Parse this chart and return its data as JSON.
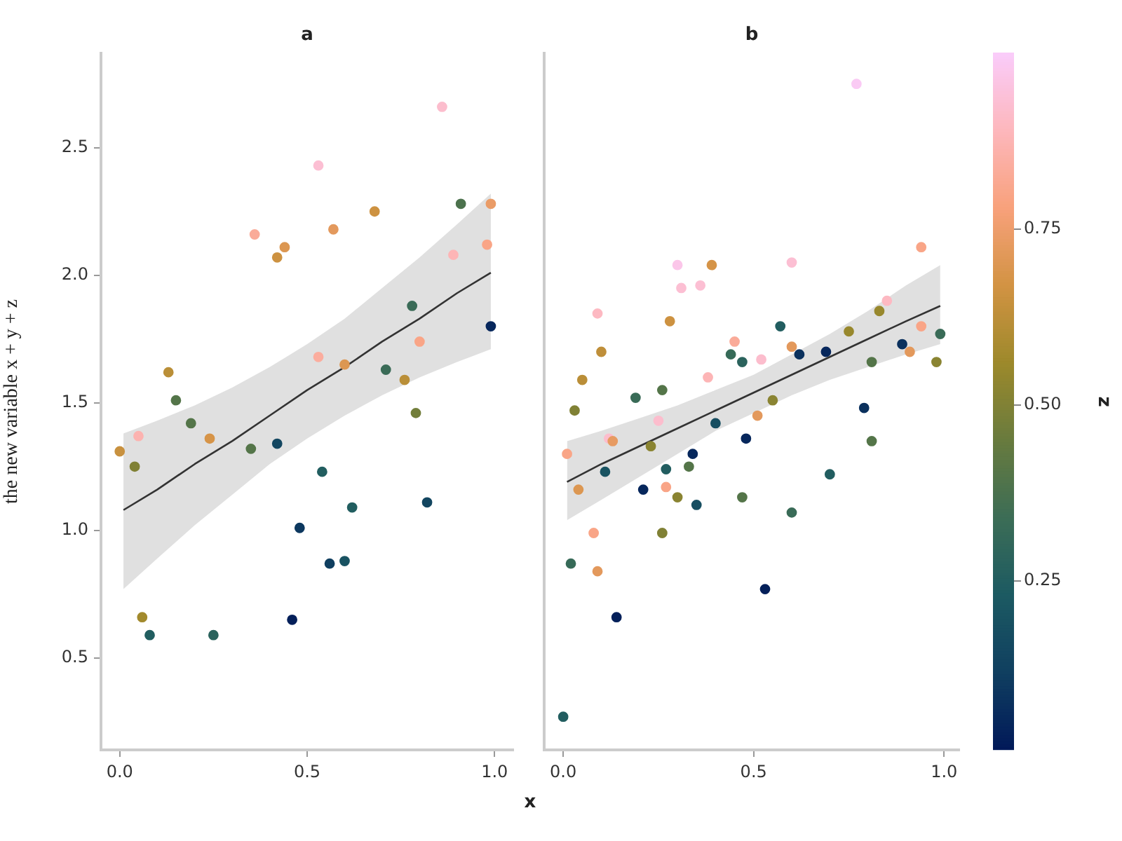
{
  "chart_data": [
    {
      "type": "scatter",
      "title": "a",
      "xlabel": "x",
      "ylabel": "the new variable x + y + z",
      "xlim": [
        -0.05,
        1.05
      ],
      "xticks": [
        {
          "value": 0,
          "label": "0.0"
        },
        {
          "value": 0.5,
          "label": "0.5"
        },
        {
          "value": 1,
          "label": "1.0"
        }
      ],
      "ylim": [
        0.14,
        2.87
      ],
      "yticks": [
        {
          "value": 0.5,
          "label": "0.5"
        },
        {
          "value": 1,
          "label": "1.0"
        },
        {
          "value": 1.5,
          "label": "1.5"
        },
        {
          "value": 2,
          "label": "2.0"
        },
        {
          "value": 2.5,
          "label": "2.5"
        }
      ],
      "marker": "circle",
      "series": [
        {
          "type": "scatter",
          "x": [
            0.0,
            0.05,
            0.04,
            0.13,
            0.15,
            0.19,
            0.24,
            0.06,
            0.08,
            0.25,
            0.35,
            0.42,
            0.36,
            0.42,
            0.44,
            0.53,
            0.57,
            0.68,
            0.53,
            0.6,
            0.71,
            0.76,
            0.78,
            0.79,
            0.8,
            0.86,
            0.91,
            0.89,
            0.98,
            0.99,
            0.99,
            0.54,
            0.62,
            0.48,
            0.56,
            0.6,
            0.82,
            0.46
          ],
          "values": [
            1.31,
            1.37,
            1.25,
            1.62,
            1.51,
            1.42,
            1.36,
            0.66,
            0.59,
            0.59,
            1.32,
            1.34,
            2.16,
            2.07,
            2.11,
            2.43,
            2.18,
            2.25,
            1.68,
            1.65,
            1.63,
            1.59,
            1.88,
            1.46,
            1.74,
            2.66,
            2.28,
            2.08,
            2.12,
            2.28,
            1.8,
            1.23,
            1.09,
            1.01,
            0.87,
            0.88,
            1.11,
            0.65
          ],
          "colors": [
            "#c8913f",
            "#fcb3b0",
            "#808135",
            "#ba8f38",
            "#547549",
            "#547549",
            "#d69448",
            "#a28a2d",
            "#225e60",
            "#2b635d",
            "#547549",
            "#134660",
            "#faab99",
            "#cd9241",
            "#dc9752",
            "#fcbfd3",
            "#e3995d",
            "#cd9241",
            "#fbad9e",
            "#dc9752",
            "#3a6b57",
            "#ba8f38",
            "#3a6b57",
            "#727e3b",
            "#f9a587",
            "#fcbdcd",
            "#4c724d",
            "#fdb5b6",
            "#f9a587",
            "#ea9c67",
            "#07275c",
            "#225e60",
            "#225e60",
            "#0d385f",
            "#103f60",
            "#195362",
            "#134660",
            "#04205a"
          ]
        },
        {
          "type": "line",
          "marker": "none",
          "color": "#333333",
          "x": [
            0.01,
            0.1,
            0.2,
            0.3,
            0.4,
            0.5,
            0.6,
            0.7,
            0.8,
            0.9,
            0.99
          ],
          "values": [
            1.08,
            1.16,
            1.26,
            1.35,
            1.45,
            1.55,
            1.64,
            1.74,
            1.83,
            1.93,
            2.01
          ],
          "lower": [
            0.77,
            0.89,
            1.02,
            1.14,
            1.26,
            1.36,
            1.45,
            1.53,
            1.6,
            1.66,
            1.71
          ],
          "upper": [
            1.38,
            1.43,
            1.49,
            1.56,
            1.64,
            1.73,
            1.83,
            1.95,
            2.07,
            2.2,
            2.32
          ]
        }
      ]
    },
    {
      "type": "scatter",
      "title": "b",
      "xlim": [
        -0.05,
        1.04
      ],
      "xticks": [
        {
          "value": 0,
          "label": "0.0"
        },
        {
          "value": 0.5,
          "label": "0.5"
        },
        {
          "value": 1,
          "label": "1.0"
        }
      ],
      "ylim": [
        0.14,
        2.87
      ],
      "tick_labels": "x",
      "clim": [
        0.01,
        1.0
      ],
      "clabel": "z",
      "cticks": [
        0.25,
        {
          "value": 0.5,
          "label": "0.50"
        },
        0.75
      ],
      "marker": "circle",
      "series": [
        {
          "type": "scatter",
          "x": [
            0.01,
            0.03,
            0.05,
            0.1,
            0.04,
            0.02,
            0.08,
            0.09,
            0.14,
            0.0,
            0.11,
            0.12,
            0.13,
            0.19,
            0.26,
            0.23,
            0.25,
            0.21,
            0.27,
            0.27,
            0.3,
            0.34,
            0.33,
            0.35,
            0.26,
            0.38,
            0.4,
            0.48,
            0.47,
            0.51,
            0.55,
            0.6,
            0.53,
            0.7,
            0.79,
            0.81,
            0.77,
            0.3,
            0.39,
            0.31,
            0.36,
            0.6,
            0.09,
            0.28,
            0.57,
            0.45,
            0.44,
            0.47,
            0.52,
            0.6,
            0.62,
            0.69,
            0.75,
            0.83,
            0.85,
            0.94,
            0.94,
            0.89,
            0.91,
            0.81,
            0.99,
            0.98
          ],
          "values": [
            1.3,
            1.47,
            1.59,
            1.7,
            1.16,
            0.87,
            0.99,
            0.84,
            0.66,
            0.27,
            1.23,
            1.36,
            1.35,
            1.52,
            1.55,
            1.33,
            1.43,
            1.16,
            1.24,
            1.17,
            1.13,
            1.3,
            1.25,
            1.1,
            0.99,
            1.6,
            1.42,
            1.36,
            1.13,
            1.45,
            1.51,
            1.07,
            0.77,
            1.22,
            1.48,
            1.35,
            2.75,
            2.04,
            2.04,
            1.95,
            1.96,
            2.05,
            1.85,
            1.82,
            1.8,
            1.74,
            1.69,
            1.66,
            1.67,
            1.72,
            1.69,
            1.7,
            1.78,
            1.86,
            1.9,
            2.11,
            1.8,
            1.73,
            1.7,
            1.66,
            1.77,
            1.66
          ],
          "colors": [
            "#f9a587",
            "#808135",
            "#ba8f38",
            "#bf8f3a",
            "#dc9752",
            "#386b58",
            "#f9a587",
            "#e3995d",
            "#04205a",
            "#225e60",
            "#195362",
            "#fcbdcd",
            "#e79b62",
            "#3a6b57",
            "#547549",
            "#8a8432",
            "#fcbdcd",
            "#07275c",
            "#225e60",
            "#f9a587",
            "#8a8432",
            "#07275c",
            "#547549",
            "#174e61",
            "#808135",
            "#fdb5b6",
            "#174e61",
            "#07275c",
            "#547549",
            "#e3995d",
            "#8a8432",
            "#3a6b57",
            "#04205a",
            "#225e60",
            "#0b315e",
            "#547549",
            "#facaf4",
            "#fbc6e9",
            "#d69448",
            "#fcbfd3",
            "#fcbfd3",
            "#fcbfd3",
            "#fdb9c2",
            "#cd9241",
            "#225e60",
            "#faab99",
            "#386b58",
            "#2b635d",
            "#fcbdcd",
            "#e3995d",
            "#0b315e",
            "#07275c",
            "#98882d",
            "#98882d",
            "#fdb9c2",
            "#f9a587",
            "#f9a587",
            "#0b315e",
            "#e3995d",
            "#547549",
            "#3a6b57",
            "#8a8432"
          ],
          "cvalues": [
            0.8,
            0.5,
            0.62,
            0.63,
            0.7,
            0.32,
            0.8,
            0.72,
            0.03,
            0.25,
            0.2,
            0.92,
            0.73,
            0.33,
            0.4,
            0.52,
            0.92,
            0.05,
            0.25,
            0.8,
            0.52,
            0.05,
            0.4,
            0.18,
            0.5,
            0.88,
            0.18,
            0.05,
            0.4,
            0.72,
            0.52,
            0.33,
            0.03,
            0.25,
            0.08,
            0.4,
            0.99,
            0.97,
            0.68,
            0.93,
            0.93,
            0.93,
            0.9,
            0.66,
            0.25,
            0.83,
            0.32,
            0.28,
            0.92,
            0.72,
            0.08,
            0.05,
            0.55,
            0.55,
            0.9,
            0.8,
            0.8,
            0.08,
            0.72,
            0.4,
            0.33,
            0.52
          ]
        },
        {
          "type": "line",
          "marker": "none",
          "color": "#333333",
          "x": [
            0.01,
            0.1,
            0.2,
            0.3,
            0.4,
            0.5,
            0.6,
            0.7,
            0.8,
            0.9,
            0.99
          ],
          "values": [
            1.19,
            1.26,
            1.33,
            1.4,
            1.47,
            1.54,
            1.61,
            1.68,
            1.75,
            1.82,
            1.88
          ],
          "lower": [
            1.04,
            1.12,
            1.21,
            1.3,
            1.39,
            1.46,
            1.53,
            1.59,
            1.64,
            1.69,
            1.73
          ],
          "upper": [
            1.35,
            1.39,
            1.44,
            1.49,
            1.55,
            1.61,
            1.69,
            1.77,
            1.86,
            1.96,
            2.04
          ]
        }
      ]
    }
  ]
}
